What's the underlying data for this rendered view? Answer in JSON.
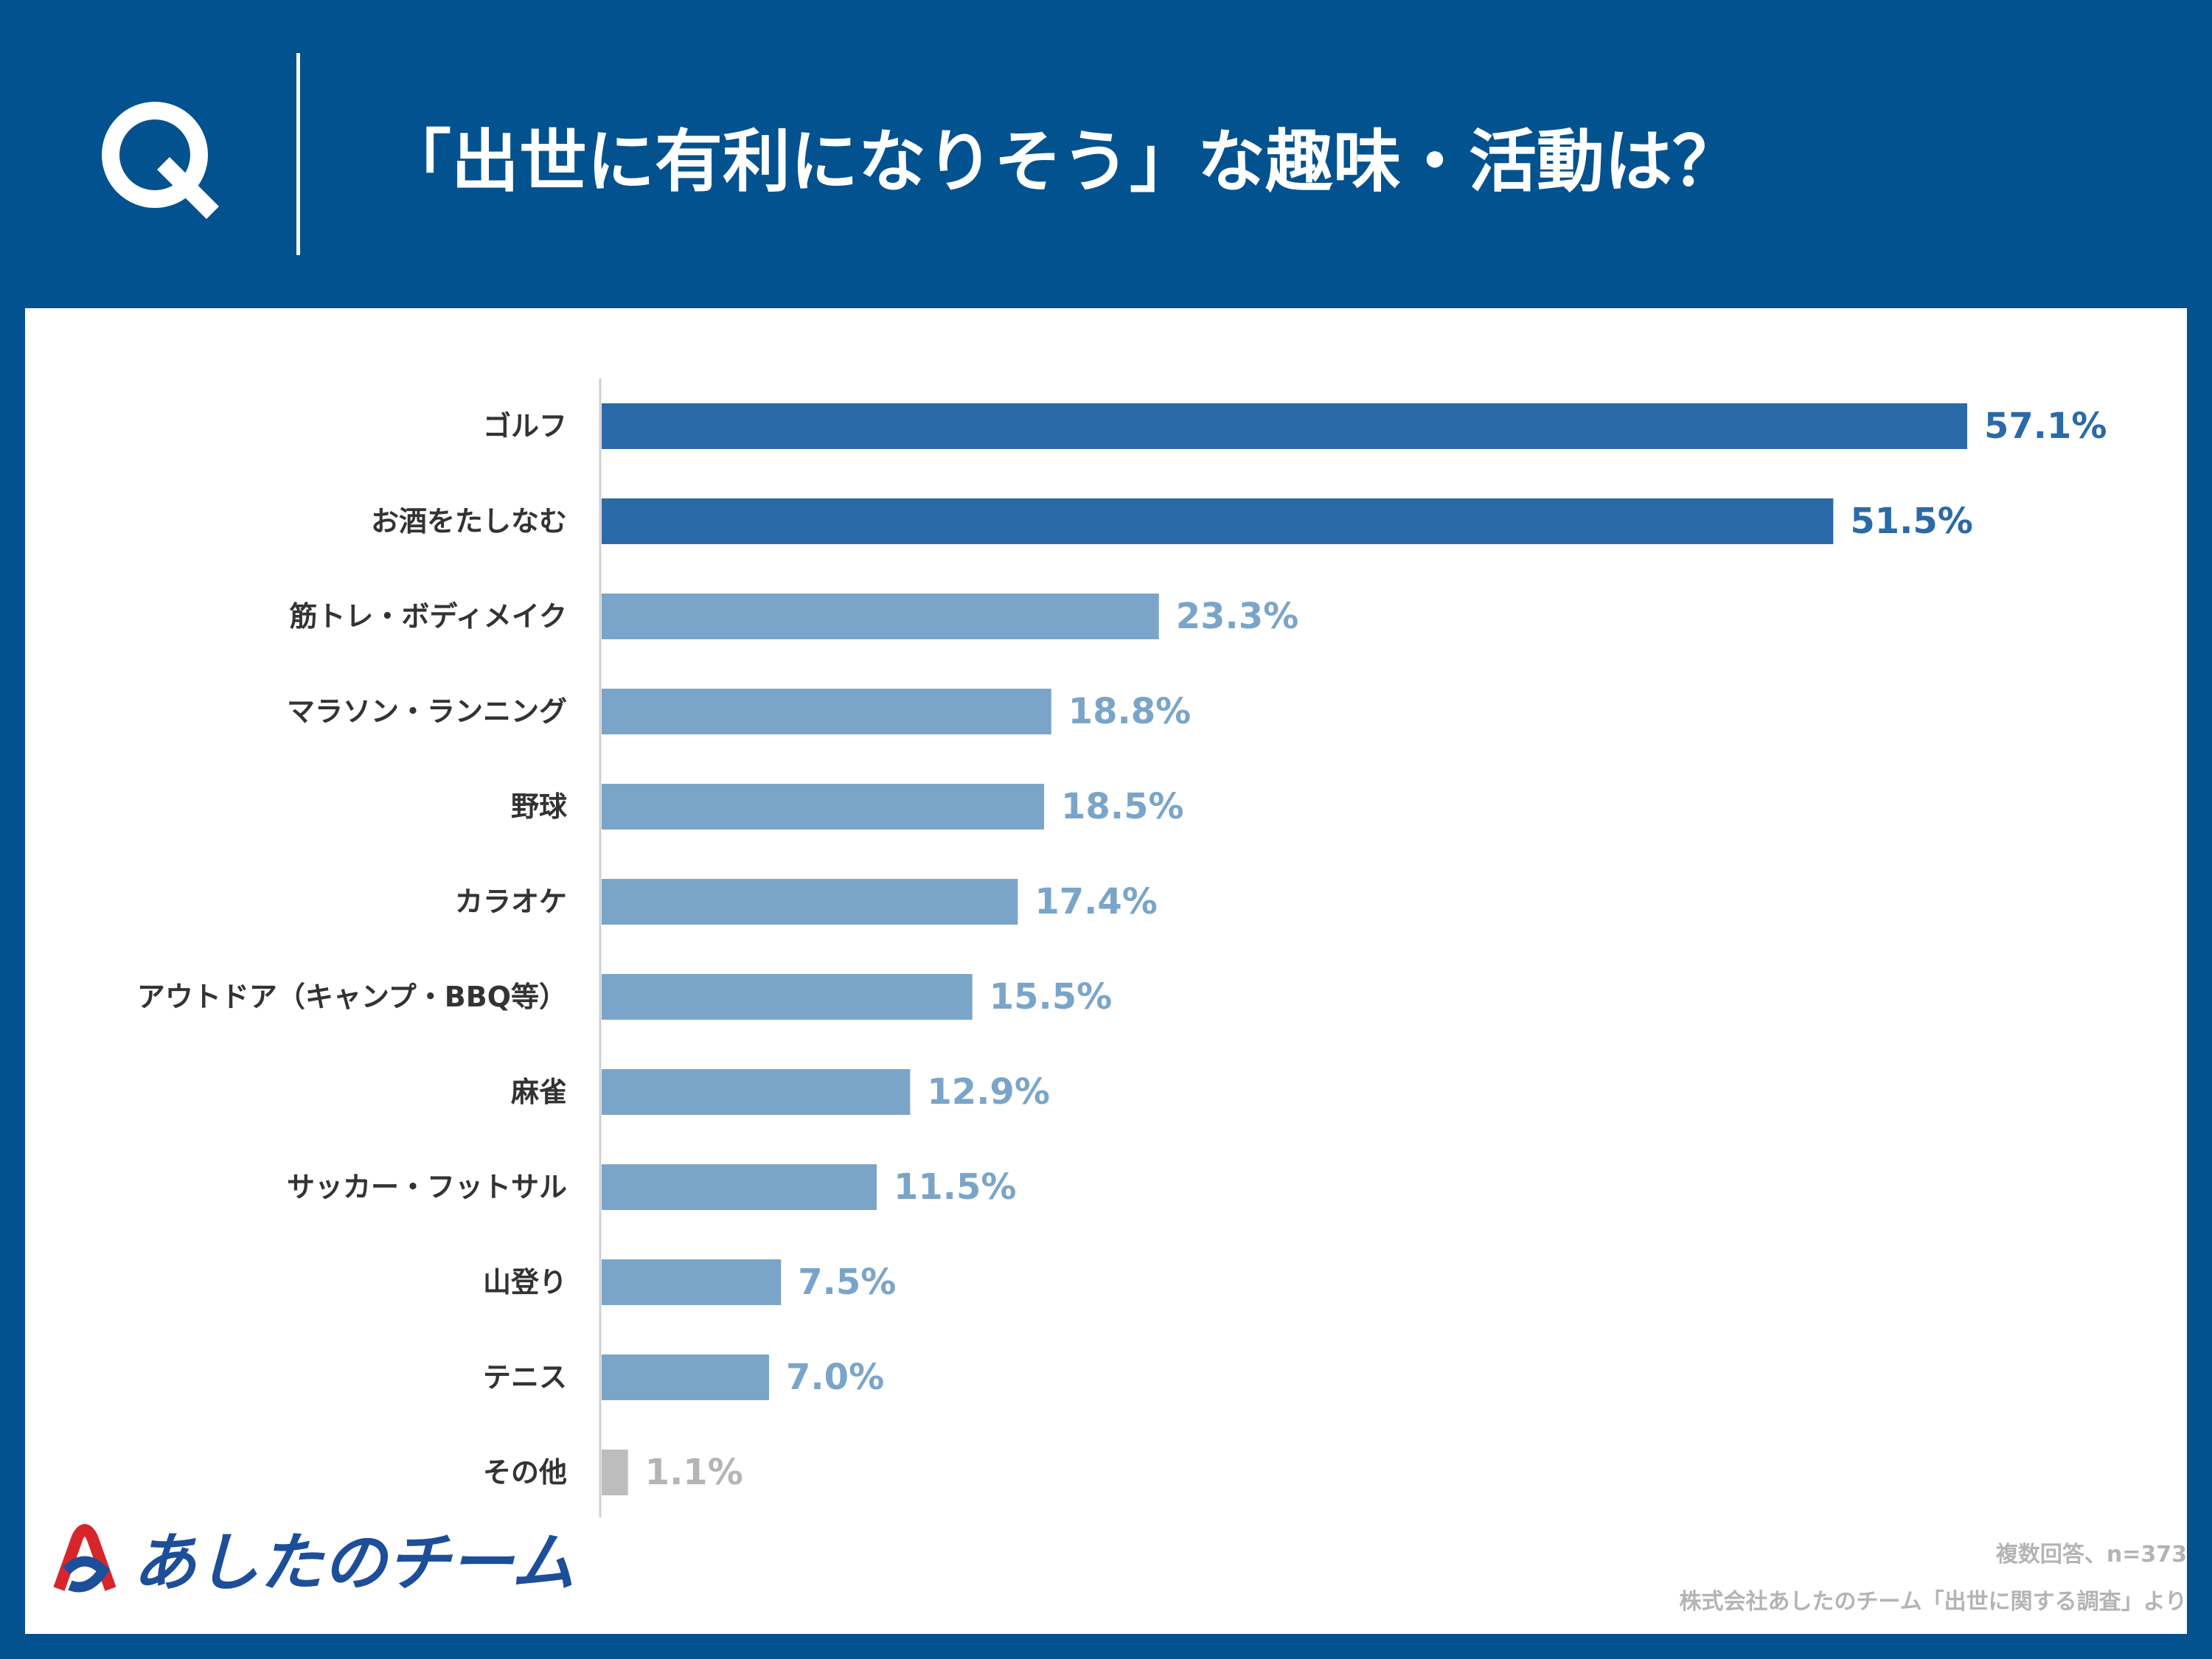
{
  "header": {
    "q_letter": "Q",
    "title": "「出世に有利になりそう」な趣味・活動は？"
  },
  "chart_data": {
    "type": "bar",
    "orientation": "horizontal",
    "categories": [
      "ゴルフ",
      "お酒をたしなむ",
      "筋トレ・ボディメイク",
      "マラソン・ランニング",
      "野球",
      "カラオケ",
      "アウトドア（キャンプ・BBQ等）",
      "麻雀",
      "サッカー・フットサル",
      "山登り",
      "テニス",
      "その他"
    ],
    "values": [
      57.1,
      51.5,
      23.3,
      18.8,
      18.5,
      17.4,
      15.5,
      12.9,
      11.5,
      7.5,
      7.0,
      1.1
    ],
    "value_labels": [
      "57.1%",
      "51.5%",
      "23.3%",
      "18.8%",
      "18.5%",
      "17.4%",
      "15.5%",
      "12.9%",
      "11.5%",
      "7.5%",
      "7.0%",
      "1.1%"
    ],
    "bar_colors": [
      "#2b6aa8",
      "#2b6aa8",
      "#7aa5c9",
      "#7aa5c9",
      "#7aa5c9",
      "#7aa5c9",
      "#7aa5c9",
      "#7aa5c9",
      "#7aa5c9",
      "#7aa5c9",
      "#7aa5c9",
      "#bdbdbd"
    ],
    "xlim": [
      0,
      57.1
    ],
    "grid": false
  },
  "footnotes": {
    "line1": "複数回答、n=373",
    "line2": "株式会社あしたのチーム「出世に関する調査」より"
  },
  "logo": {
    "text": "あしたのチーム"
  }
}
